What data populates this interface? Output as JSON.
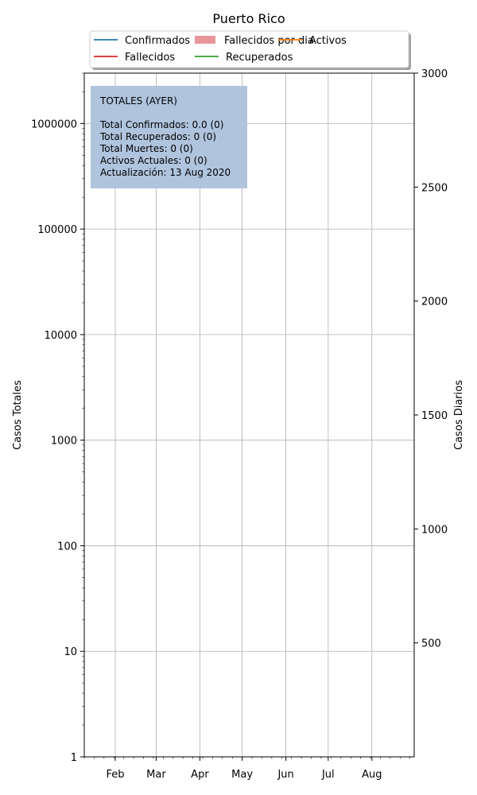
{
  "chart_data": {
    "type": "line",
    "title": "Puerto Rico",
    "ylabel": "Casos Totales",
    "y2label": "Casos Diarios",
    "yscale": "log",
    "ylim": [
      1,
      3000000
    ],
    "y_ticks": [
      {
        "value": 1,
        "label": "1"
      },
      {
        "value": 10,
        "label": "10"
      },
      {
        "value": 100,
        "label": "100"
      },
      {
        "value": 1000,
        "label": "1000"
      },
      {
        "value": 10000,
        "label": "10000"
      },
      {
        "value": 100000,
        "label": "100000"
      },
      {
        "value": 1000000,
        "label": "1000000"
      }
    ],
    "y2lim": [
      0,
      3000
    ],
    "y2_ticks": [
      {
        "value": 500,
        "label": "500"
      },
      {
        "value": 1000,
        "label": "1000"
      },
      {
        "value": 1500,
        "label": "1500"
      },
      {
        "value": 2000,
        "label": "2000"
      },
      {
        "value": 2500,
        "label": "2500"
      },
      {
        "value": 3000,
        "label": "3000"
      }
    ],
    "xlim": [
      "2020-01-10",
      "2020-08-31"
    ],
    "x_ticks": [
      {
        "date": "2020-02-01",
        "label": "Feb"
      },
      {
        "date": "2020-03-01",
        "label": "Mar"
      },
      {
        "date": "2020-04-01",
        "label": "Apr"
      },
      {
        "date": "2020-05-01",
        "label": "May"
      },
      {
        "date": "2020-06-01",
        "label": "Jun"
      },
      {
        "date": "2020-07-01",
        "label": "Jul"
      },
      {
        "date": "2020-08-01",
        "label": "Aug"
      }
    ],
    "grid": true,
    "legend_position": "top-center",
    "series": [
      {
        "name": "Confirmados",
        "color": "#1f77b4",
        "kind": "line",
        "values": []
      },
      {
        "name": "Fallecidos",
        "color": "#d62728",
        "kind": "line",
        "values": []
      },
      {
        "name": "Fallecidos por dia",
        "color": "#e8969a",
        "kind": "bar",
        "values": []
      },
      {
        "name": "Recuperados",
        "color": "#2ca02c",
        "kind": "line",
        "values": []
      },
      {
        "name": "Activos",
        "color": "#ff7f0e",
        "kind": "line",
        "values": []
      }
    ],
    "annotation": {
      "background": "#b0c4de",
      "lines": [
        "TOTALES (AYER)",
        "",
        "Total Confirmados: 0.0 (0)",
        "Total Recuperados: 0 (0)",
        "Total Muertes: 0 (0)",
        "Activos Actuales:      0 (0)",
        "Actualización: 13 Aug 2020"
      ]
    }
  }
}
